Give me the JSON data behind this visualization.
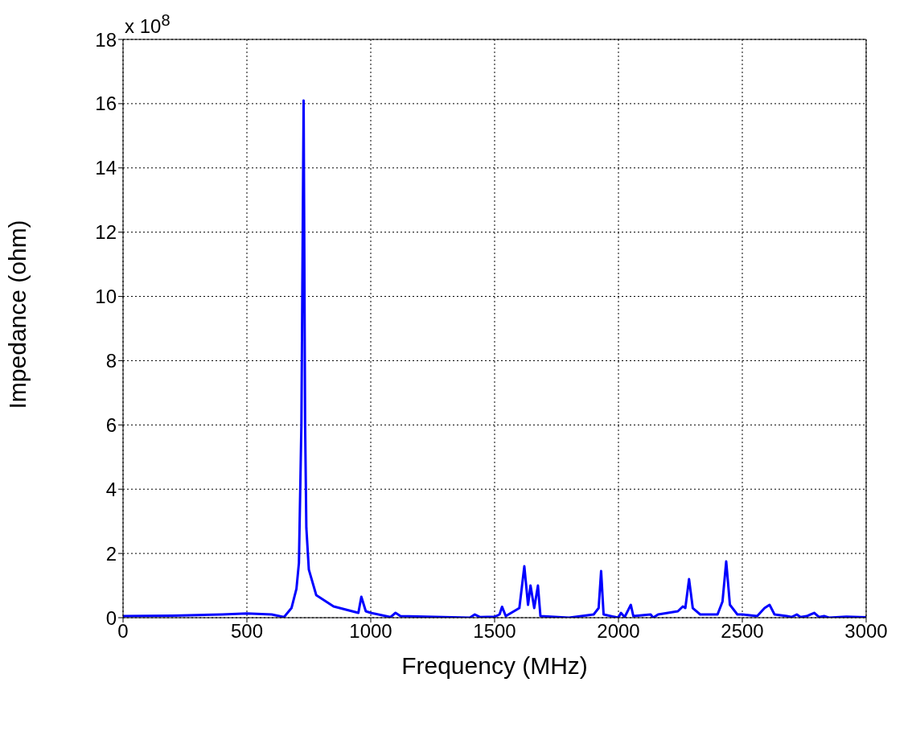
{
  "chart_data": {
    "type": "line",
    "xlabel": "Frequency (MHz)",
    "ylabel": "Impedance (ohm)",
    "annotations": [
      "x 10$^{8}$"
    ],
    "xlim": [
      0,
      3000
    ],
    "xticks": [
      0,
      500,
      1000,
      1500,
      2000,
      2500,
      3000
    ],
    "ylim": [
      0,
      18
    ],
    "yticks": [
      0,
      2,
      4,
      6,
      8,
      10,
      12,
      14,
      16,
      18
    ],
    "grid": true,
    "marker": "none",
    "line_style": "solid",
    "series": [
      {
        "color": "#0000ff",
        "x": [
          0,
          200,
          400,
          500,
          600,
          650,
          680,
          700,
          710,
          720,
          729,
          735,
          740,
          750,
          780,
          850,
          950,
          962,
          980,
          1000,
          1080,
          1100,
          1120,
          1400,
          1420,
          1440,
          1500,
          1520,
          1530,
          1545,
          1600,
          1620,
          1635,
          1645,
          1660,
          1675,
          1685,
          1800,
          1900,
          1920,
          1930,
          1940,
          2000,
          2010,
          2025,
          2050,
          2060,
          2130,
          2140,
          2160,
          2240,
          2260,
          2270,
          2285,
          2300,
          2330,
          2400,
          2420,
          2435,
          2450,
          2480,
          2500,
          2560,
          2590,
          2610,
          2630,
          2680,
          2700,
          2720,
          2735,
          2760,
          2790,
          2810,
          2830,
          2850,
          2920,
          3000
        ],
        "values": [
          0.05,
          0.06,
          0.1,
          0.13,
          0.1,
          0.02,
          0.3,
          0.9,
          1.7,
          6,
          16.1,
          6,
          2.8,
          1.5,
          0.7,
          0.35,
          0.15,
          0.65,
          0.2,
          0.15,
          0.02,
          0.15,
          0.05,
          0,
          0.1,
          0.02,
          0.03,
          0.1,
          0.34,
          0.05,
          0.3,
          1.6,
          0.4,
          1.0,
          0.3,
          1.0,
          0.05,
          0,
          0.1,
          0.3,
          1.45,
          0.1,
          0,
          0.15,
          0.02,
          0.4,
          0.05,
          0.1,
          0,
          0.1,
          0.2,
          0.35,
          0.3,
          1.2,
          0.3,
          0.1,
          0.1,
          0.5,
          1.75,
          0.4,
          0.1,
          0.1,
          0.05,
          0.3,
          0.4,
          0.1,
          0.05,
          0.02,
          0.1,
          0.02,
          0.05,
          0.15,
          0.02,
          0.05,
          0,
          0.03,
          0.01
        ]
      }
    ]
  }
}
